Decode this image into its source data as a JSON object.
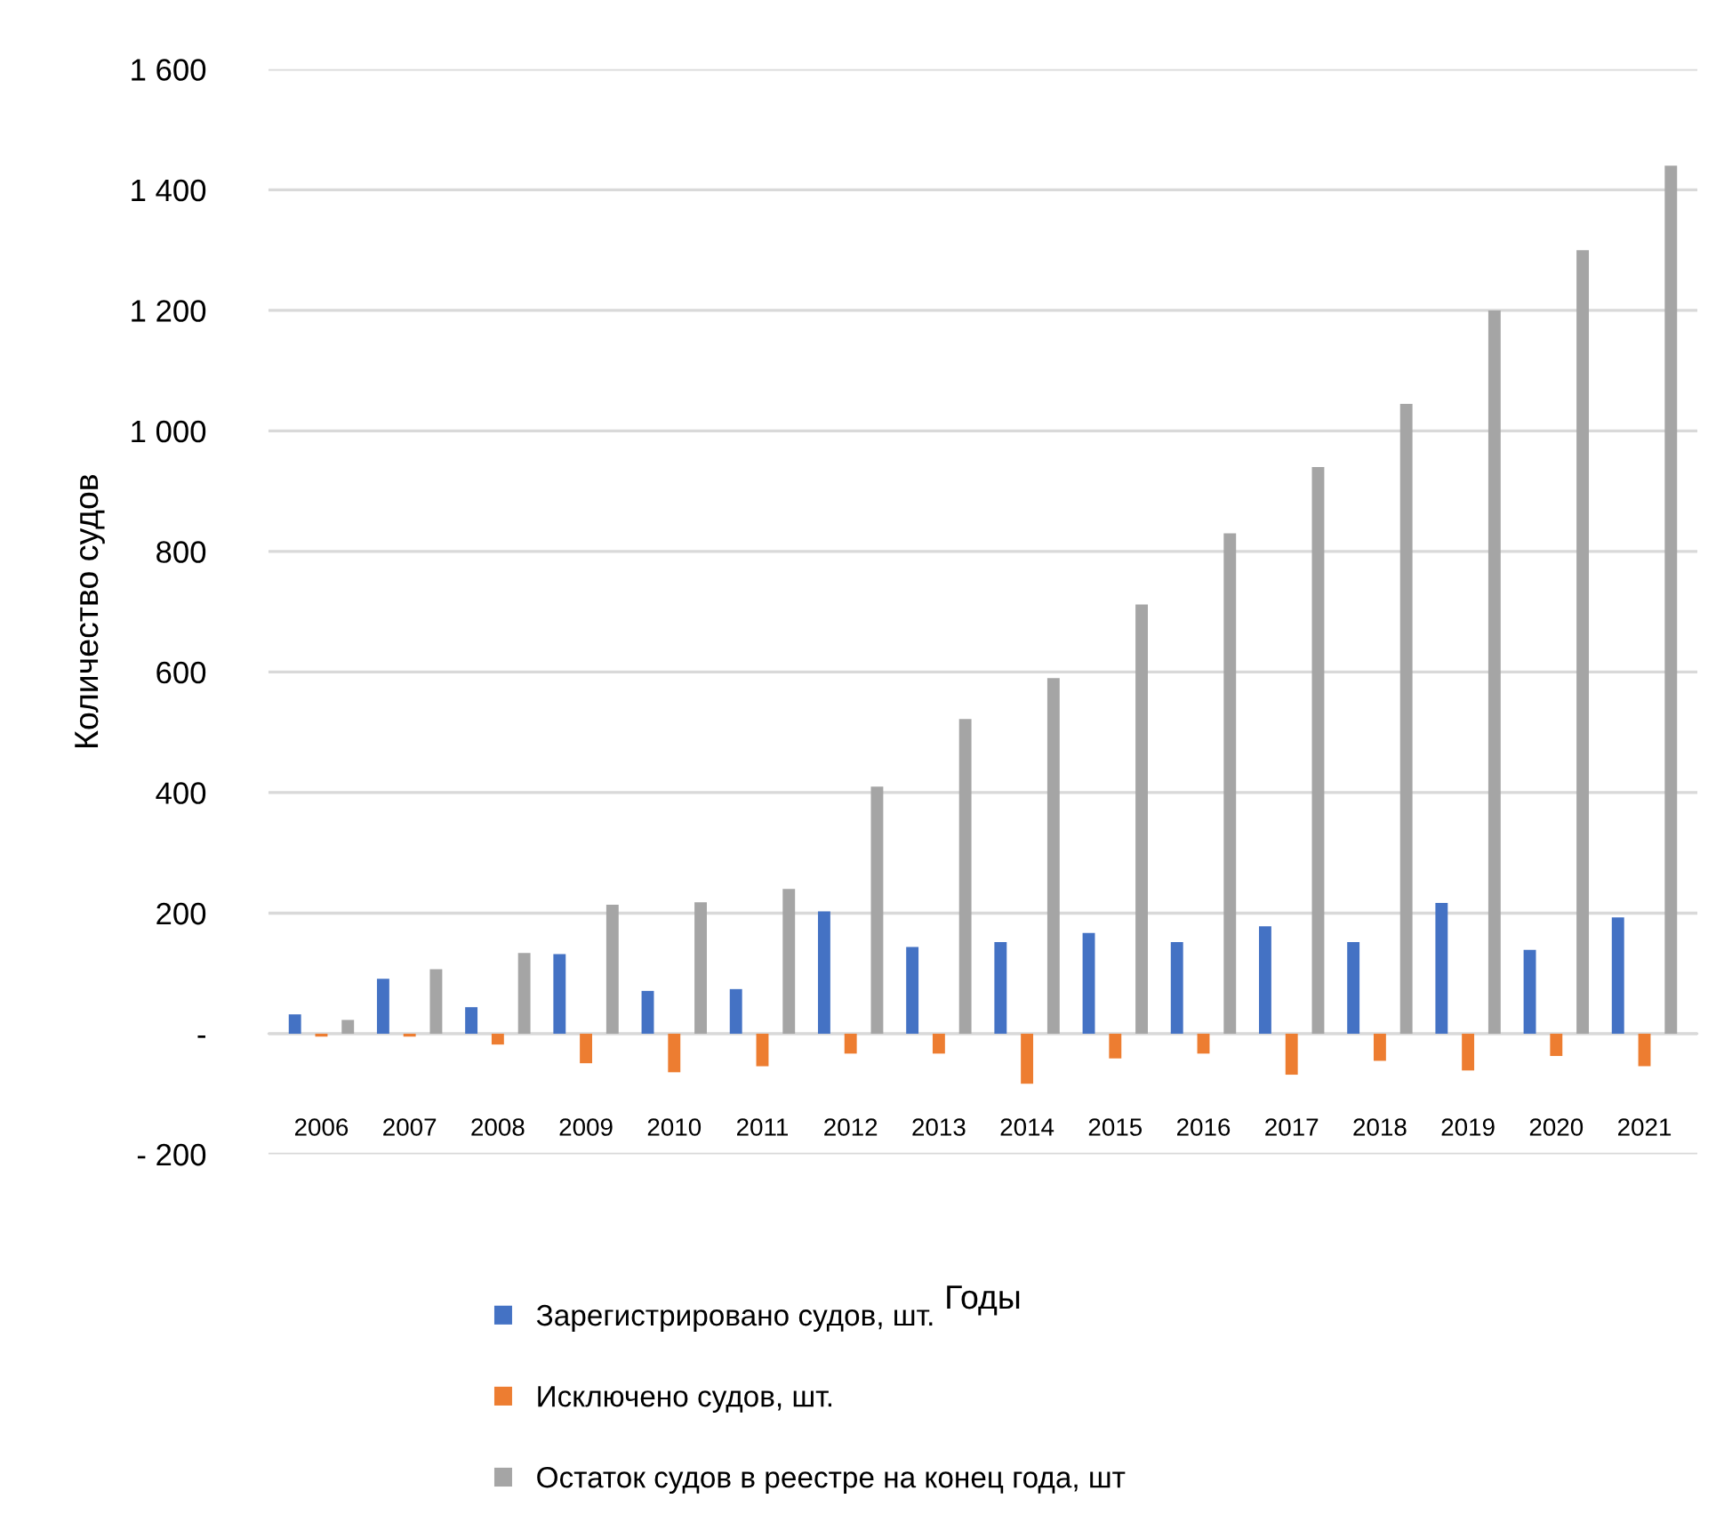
{
  "chart_data": {
    "type": "bar",
    "xlabel": "Годы",
    "ylabel": "Количество судов",
    "categories": [
      "2006",
      "2007",
      "2008",
      "2009",
      "2010",
      "2011",
      "2012",
      "2013",
      "2014",
      "2015",
      "2016",
      "2017",
      "2018",
      "2019",
      "2020",
      "2021"
    ],
    "series": [
      {
        "name": "Зарегистрировано судов, шт.",
        "color": "#4472c4",
        "values": [
          32,
          91,
          44,
          132,
          71,
          74,
          203,
          144,
          152,
          167,
          152,
          178,
          152,
          217,
          139,
          193
        ]
      },
      {
        "name": "Исключено судов, шт.",
        "color": "#ed7d31",
        "values": [
          -5,
          -5,
          -18,
          -49,
          -64,
          -54,
          -33,
          -33,
          -83,
          -41,
          -33,
          -68,
          -45,
          -61,
          -37,
          -54
        ]
      },
      {
        "name": "Остаток судов в реестре на конец года, шт",
        "color": "#a5a5a5",
        "values": [
          23,
          107,
          134,
          214,
          218,
          240,
          410,
          522,
          590,
          712,
          830,
          940,
          1045,
          1200,
          1300,
          1440
        ]
      }
    ],
    "ylim": [
      -200,
      1600
    ],
    "yticks": [
      {
        "value": -200,
        "label": "- 200"
      },
      {
        "value": 0,
        "label": "-"
      },
      200,
      400,
      600,
      800,
      {
        "value": 1000,
        "label": "1 000"
      },
      {
        "value": 1200,
        "label": "1 200"
      },
      {
        "value": 1400,
        "label": "1 400"
      },
      {
        "value": 1600,
        "label": "1 600"
      }
    ],
    "grid": "y",
    "legend": "bottom"
  }
}
